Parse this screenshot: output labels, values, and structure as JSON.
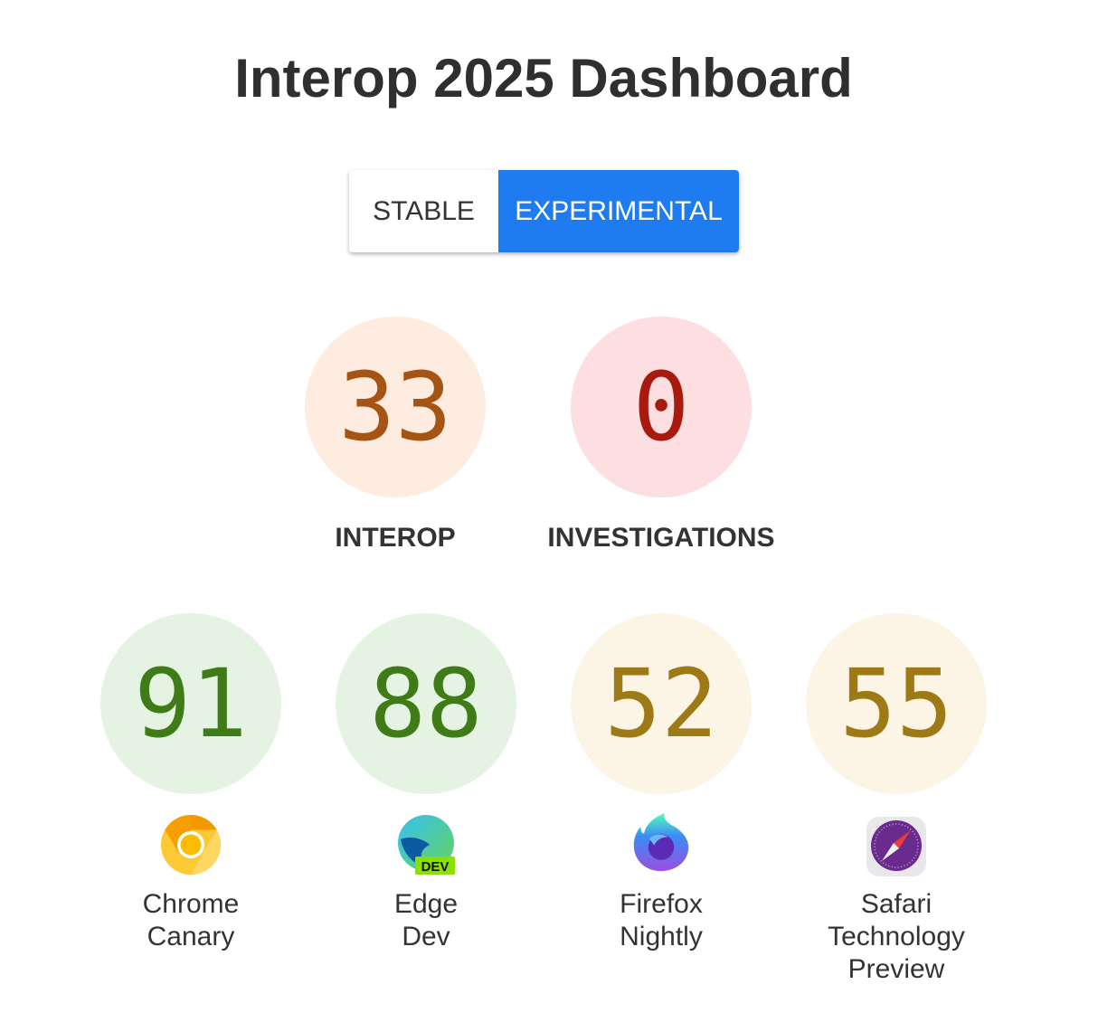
{
  "header": {
    "title": "Interop 2025 Dashboard"
  },
  "toggle": {
    "options": [
      {
        "label": "STABLE",
        "selected": false
      },
      {
        "label": "EXPERIMENTAL",
        "selected": true
      }
    ],
    "accent": "#1f7cf0"
  },
  "summary": [
    {
      "value": "33",
      "label": "INTEROP",
      "bg": "#feece1",
      "fg": "#a65413"
    },
    {
      "value": "0",
      "label": "INVESTIGATIONS",
      "bg": "#fddee1",
      "fg": "#a81a0e"
    }
  ],
  "browsers": [
    {
      "score": "91",
      "name_line1": "Chrome",
      "name_line2": "Canary",
      "icon": "chrome-canary-icon",
      "bg": "#e5f3e3",
      "fg": "#3f7c17"
    },
    {
      "score": "88",
      "name_line1": "Edge",
      "name_line2": "Dev",
      "icon": "edge-dev-icon",
      "badge": "DEV",
      "bg": "#e5f3e3",
      "fg": "#3f7c17"
    },
    {
      "score": "52",
      "name_line1": "Firefox",
      "name_line2": "Nightly",
      "icon": "firefox-nightly-icon",
      "bg": "#fcf4e4",
      "fg": "#9e7a17"
    },
    {
      "score": "55",
      "name_line1": "Safari",
      "name_line2": "Technology",
      "name_line3": "Preview",
      "icon": "safari-technology-preview-icon",
      "bg": "#fcf4e4",
      "fg": "#9e7a17"
    }
  ]
}
